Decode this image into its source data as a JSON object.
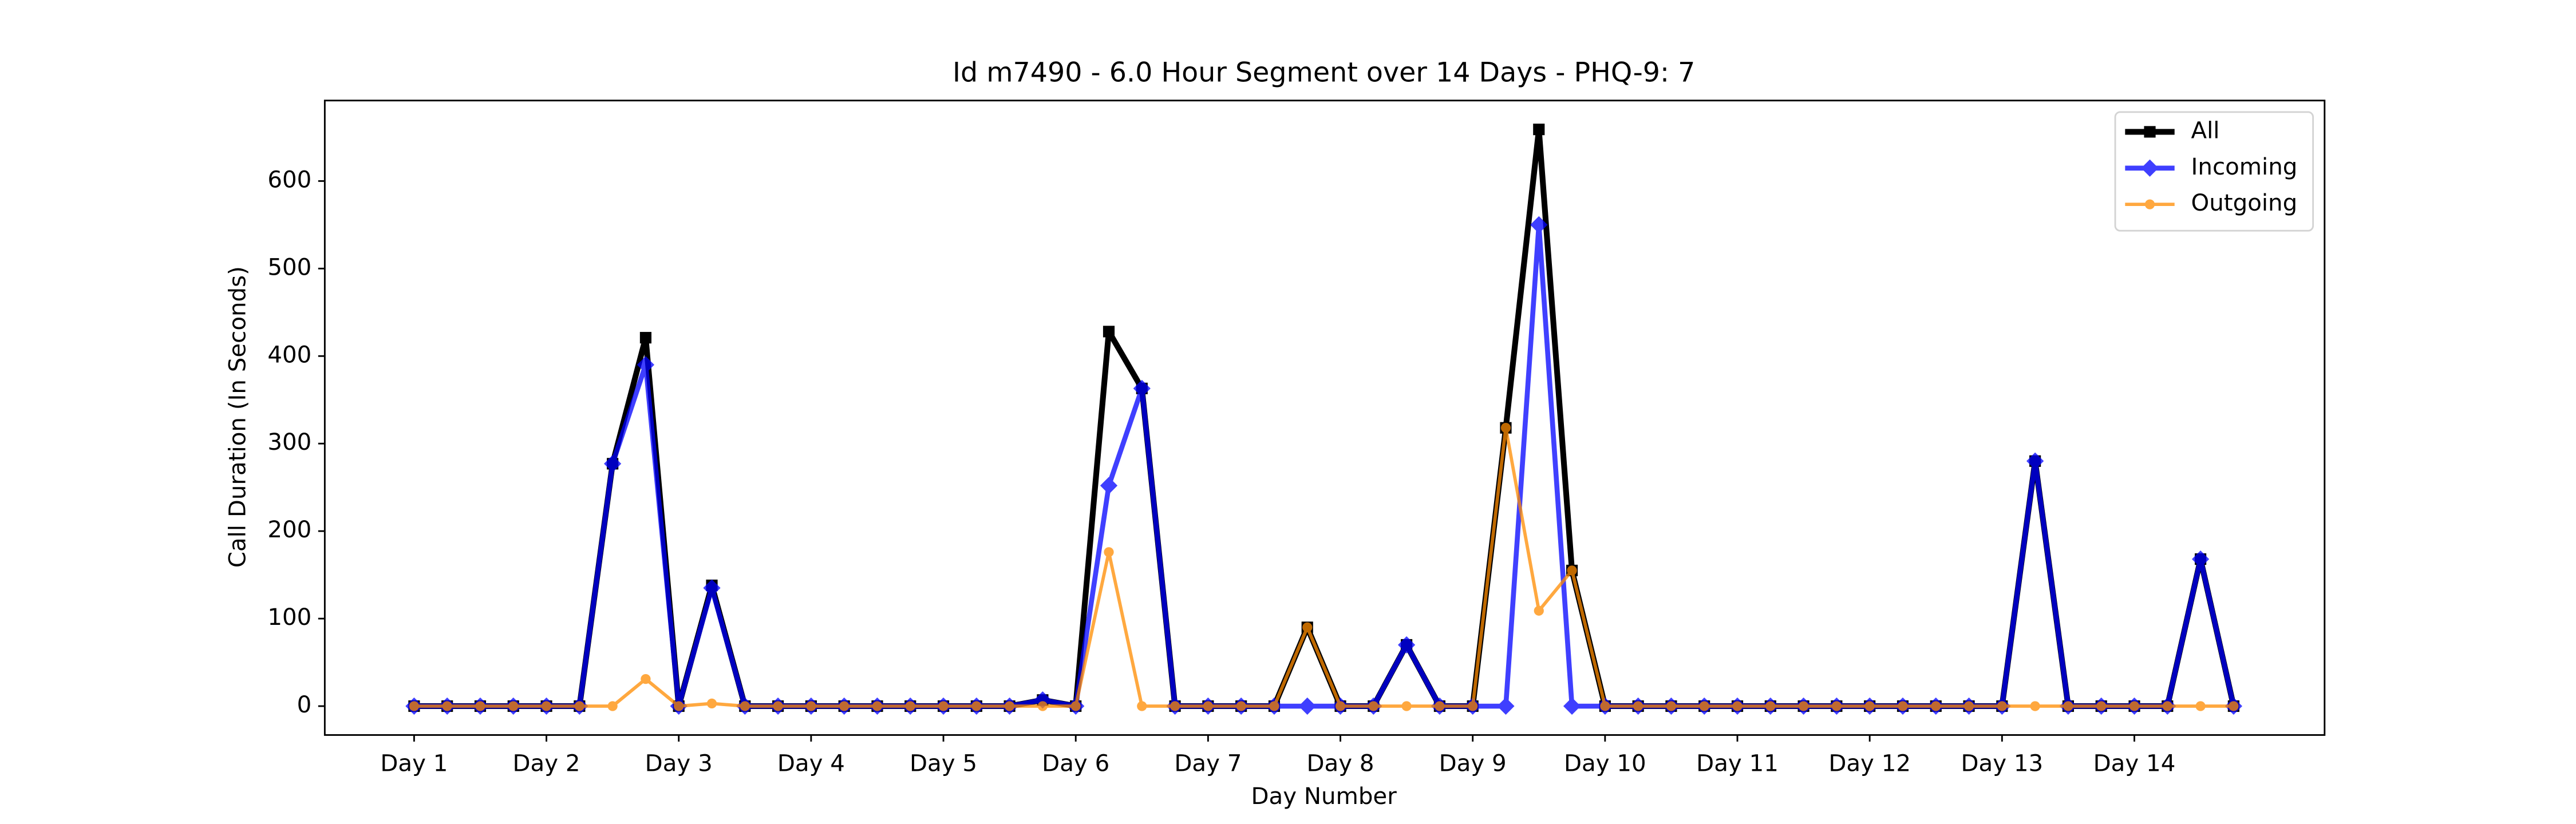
{
  "chart_data": {
    "type": "line",
    "title": "Id m7490 - 6.0 Hour Segment over 14 Days - PHQ-9: 7",
    "x_label": "Day Number",
    "y_label": "Call Duration (In Seconds)",
    "x": [
      0,
      1,
      2,
      3,
      4,
      5,
      6,
      7,
      8,
      9,
      10,
      11,
      12,
      13,
      14,
      15,
      16,
      17,
      18,
      19,
      20,
      21,
      22,
      23,
      24,
      25,
      26,
      27,
      28,
      29,
      30,
      31,
      32,
      33,
      34,
      35,
      36,
      37,
      38,
      39,
      40,
      41,
      42,
      43,
      44,
      45,
      46,
      47,
      48,
      49,
      50,
      51,
      52,
      53,
      54,
      55
    ],
    "series": [
      {
        "name": "All",
        "color": "#000000",
        "marker": "square",
        "values": [
          0,
          0,
          0,
          0,
          0,
          0,
          277,
          421,
          0,
          138,
          0,
          0,
          0,
          0,
          0,
          0,
          0,
          0,
          0,
          7,
          0,
          428,
          363,
          0,
          0,
          0,
          0,
          90,
          0,
          0,
          70,
          0,
          0,
          318,
          659,
          155,
          0,
          0,
          0,
          0,
          0,
          0,
          0,
          0,
          0,
          0,
          0,
          0,
          0,
          280,
          0,
          0,
          0,
          0,
          168,
          0
        ]
      },
      {
        "name": "Incoming",
        "color": "#0000ff",
        "marker": "diamond",
        "values": [
          0,
          0,
          0,
          0,
          0,
          0,
          277,
          390,
          0,
          135,
          0,
          0,
          0,
          0,
          0,
          0,
          0,
          0,
          0,
          7,
          0,
          252,
          363,
          0,
          0,
          0,
          0,
          0,
          0,
          0,
          70,
          0,
          0,
          0,
          550,
          0,
          0,
          0,
          0,
          0,
          0,
          0,
          0,
          0,
          0,
          0,
          0,
          0,
          0,
          280,
          0,
          0,
          0,
          0,
          168,
          0
        ]
      },
      {
        "name": "Outgoing",
        "color": "#ff8c00",
        "marker": "circle",
        "values": [
          0,
          0,
          0,
          0,
          0,
          0,
          0,
          31,
          0,
          3,
          0,
          0,
          0,
          0,
          0,
          0,
          0,
          0,
          0,
          0,
          0,
          176,
          0,
          0,
          0,
          0,
          0,
          90,
          0,
          0,
          0,
          0,
          0,
          318,
          109,
          155,
          0,
          0,
          0,
          0,
          0,
          0,
          0,
          0,
          0,
          0,
          0,
          0,
          0,
          0,
          0,
          0,
          0,
          0,
          0,
          0
        ]
      }
    ],
    "xlim": [
      -2.7,
      57.75
    ],
    "xticks": [
      {
        "value": 0,
        "label": "Day 1"
      },
      {
        "value": 4,
        "label": "Day 2"
      },
      {
        "value": 8,
        "label": "Day 3"
      },
      {
        "value": 12,
        "label": "Day 4"
      },
      {
        "value": 16,
        "label": "Day 5"
      },
      {
        "value": 20,
        "label": "Day 6"
      },
      {
        "value": 24,
        "label": "Day 7"
      },
      {
        "value": 28,
        "label": "Day 8"
      },
      {
        "value": 32,
        "label": "Day 9"
      },
      {
        "value": 36,
        "label": "Day 10"
      },
      {
        "value": 40,
        "label": "Day 11"
      },
      {
        "value": 44,
        "label": "Day 12"
      },
      {
        "value": 48,
        "label": "Day 13"
      },
      {
        "value": 52,
        "label": "Day 14"
      }
    ],
    "ylim": [
      -33,
      692
    ],
    "yticks": [
      0,
      100,
      200,
      300,
      400,
      500,
      600
    ],
    "legend": "upper right"
  }
}
